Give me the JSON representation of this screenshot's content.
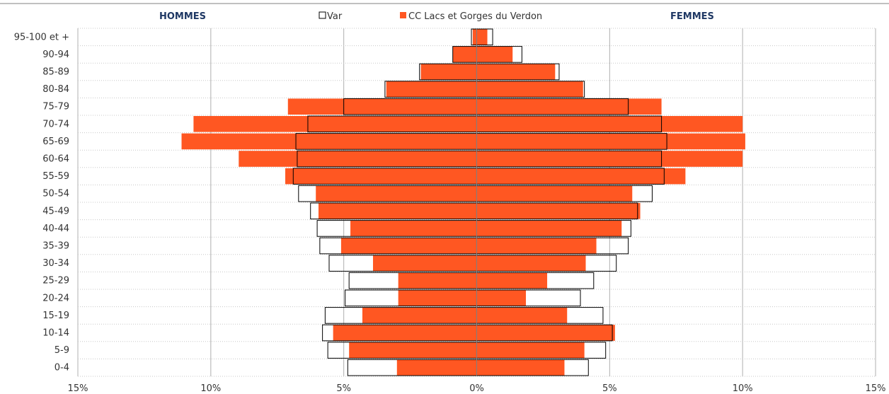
{
  "chart_data": {
    "type": "bar",
    "orientation": "horizontal-pyramid",
    "header_left": "HOMMES",
    "header_right": "FEMMES",
    "categories": [
      "0-4",
      "5-9",
      "10-14",
      "15-19",
      "20-24",
      "25-29",
      "30-34",
      "35-39",
      "40-44",
      "45-49",
      "50-54",
      "55-59",
      "60-64",
      "65-69",
      "70-74",
      "75-79",
      "80-84",
      "85-89",
      "90-94",
      "95-100 et +"
    ],
    "x_ticks": [
      "15%",
      "10%",
      "5%",
      "0%",
      "5%",
      "10%",
      "15%"
    ],
    "xlim": [
      -15,
      15
    ],
    "grid": true,
    "legend_position": "top",
    "series": [
      {
        "name": "Var",
        "style": "outline",
        "color": "#ffffff",
        "stroke": "#000000",
        "hommes": [
          4.85,
          5.6,
          5.8,
          5.7,
          4.95,
          4.8,
          5.55,
          5.9,
          6.0,
          6.25,
          6.7,
          6.9,
          6.75,
          6.8,
          6.35,
          5.0,
          3.45,
          2.15,
          0.9,
          0.2
        ],
        "femmes": [
          4.2,
          4.85,
          5.1,
          4.75,
          3.9,
          4.4,
          5.25,
          5.7,
          5.8,
          6.05,
          6.6,
          7.05,
          6.95,
          7.15,
          6.95,
          5.7,
          4.05,
          3.1,
          1.7,
          0.6
        ]
      },
      {
        "name": "CC Lacs et Gorges du Verdon",
        "style": "filled",
        "color": "#ff5722",
        "hommes": [
          3.0,
          4.8,
          5.4,
          4.3,
          2.95,
          2.95,
          3.9,
          5.1,
          4.75,
          5.95,
          6.05,
          7.2,
          8.95,
          11.1,
          10.65,
          7.1,
          3.4,
          2.1,
          0.9,
          0.15
        ],
        "femmes": [
          3.3,
          4.05,
          5.2,
          3.4,
          1.85,
          2.65,
          4.1,
          4.5,
          5.45,
          6.15,
          5.85,
          7.85,
          10.0,
          10.1,
          10.0,
          6.95,
          4.0,
          2.95,
          1.35,
          0.4
        ]
      }
    ]
  }
}
